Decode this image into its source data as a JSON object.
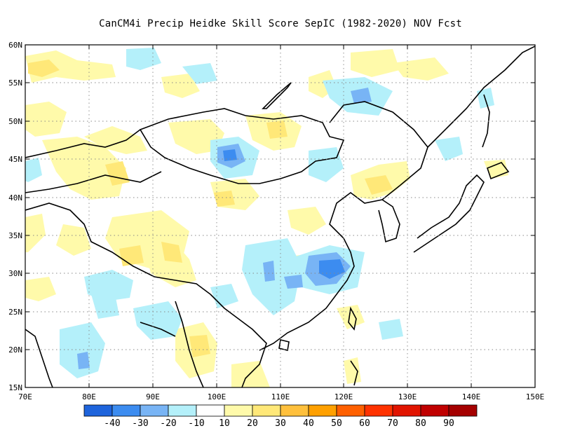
{
  "title": "CanCM4i Precip Heidke Skill Score SepIC (1982-2020) NOV Fcst",
  "map": {
    "lon_range": [
      70,
      150
    ],
    "lat_range": [
      15,
      60
    ],
    "lon_ticks": [
      "70E",
      "80E",
      "90E",
      "100E",
      "110E",
      "120E",
      "130E",
      "140E",
      "150E"
    ],
    "lat_ticks": [
      "15N",
      "20N",
      "25N",
      "30N",
      "35N",
      "40N",
      "45N",
      "50N",
      "55N",
      "60N"
    ],
    "gridlines": "dotted"
  },
  "colorbar": {
    "colors": [
      "#1e64dc",
      "#3c8cf0",
      "#78b4f5",
      "#b4f0fa",
      "#ffffff",
      "#fffaaa",
      "#ffe878",
      "#ffc03c",
      "#ffa000",
      "#ff6000",
      "#ff3200",
      "#e11400",
      "#c00000",
      "#a50000"
    ],
    "labels": [
      "-40",
      "-30",
      "-20",
      "-10",
      "10",
      "20",
      "30",
      "40",
      "50",
      "60",
      "70",
      "80",
      "90"
    ]
  },
  "colors": {
    "positive_10_20": "#fffaaa",
    "positive_20_30": "#ffe878",
    "negative_10_20": "#b4f0fa",
    "negative_20_30": "#78b4f5",
    "negative_30_40": "#3c8cf0"
  }
}
